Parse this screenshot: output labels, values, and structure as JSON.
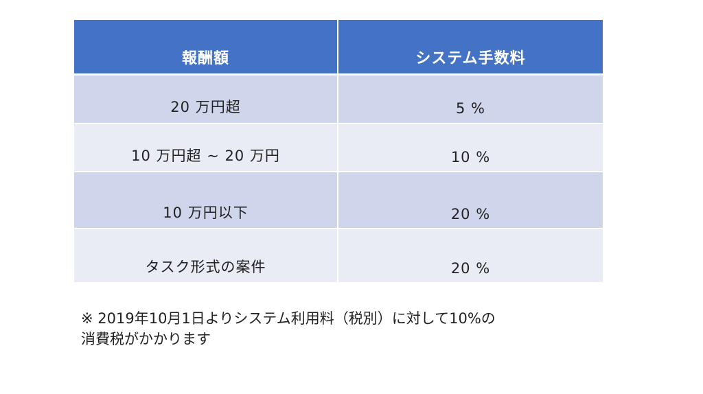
{
  "table": {
    "headers": [
      "報酬額",
      "システム手数料"
    ],
    "rows": [
      {
        "amount": "20 万円超",
        "fee": "5 %"
      },
      {
        "amount": "10 万円超 ~ 20 万円",
        "fee": "10 %"
      },
      {
        "amount": "10 万円以下",
        "fee": "20 %"
      },
      {
        "amount": "タスク形式の案件",
        "fee": "20 %"
      }
    ]
  },
  "note": {
    "line1": "※ 2019年10月1日よりシステム利用料（税別）に対して10%の",
    "line2": "消費税がかかります"
  },
  "colors": {
    "header_bg": "#4472c4",
    "row_dark": "#cfd5ea",
    "row_light": "#e9ebf5"
  }
}
